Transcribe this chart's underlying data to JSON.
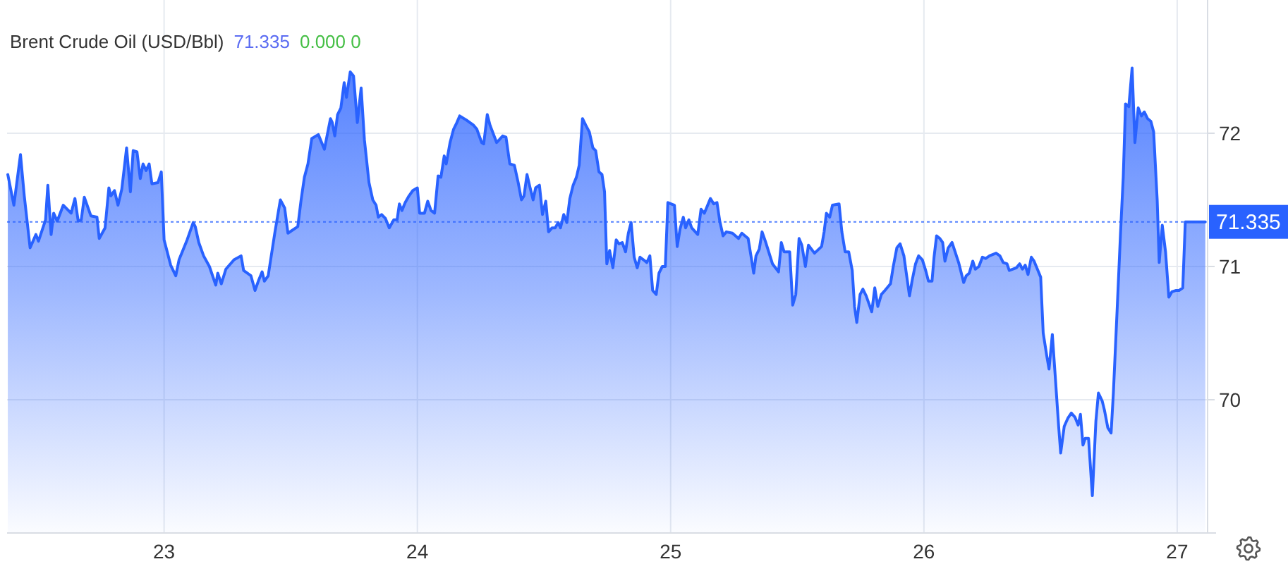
{
  "chart_data": {
    "type": "area",
    "title": "Brent Crude Oil (USD/Bbl)",
    "annotations": [
      "71.335",
      "0.000 0"
    ],
    "x": [
      22.383,
      22.407,
      22.433,
      22.448,
      22.471,
      22.494,
      22.504,
      22.532,
      22.541,
      22.554,
      22.564,
      22.578,
      22.602,
      22.633,
      22.648,
      22.661,
      22.673,
      22.685,
      22.711,
      22.735,
      22.744,
      22.767,
      22.782,
      22.79,
      22.804,
      22.818,
      22.833,
      22.852,
      22.867,
      22.878,
      22.893,
      22.906,
      22.917,
      22.929,
      22.941,
      22.952,
      22.976,
      22.989,
      23.0,
      23.026,
      23.046,
      23.059,
      23.091,
      23.115,
      23.123,
      23.137,
      23.156,
      23.179,
      23.204,
      23.212,
      23.226,
      23.244,
      23.276,
      23.304,
      23.314,
      23.343,
      23.359,
      23.374,
      23.387,
      23.396,
      23.411,
      23.437,
      23.459,
      23.476,
      23.489,
      23.528,
      23.541,
      23.554,
      23.568,
      23.583,
      23.609,
      23.633,
      23.657,
      23.664,
      23.674,
      23.685,
      23.698,
      23.711,
      23.72,
      23.735,
      23.748,
      23.763,
      23.778,
      23.791,
      23.809,
      23.824,
      23.837,
      23.846,
      23.859,
      23.874,
      23.889,
      23.907,
      23.92,
      23.929,
      23.939,
      23.952,
      23.967,
      23.982,
      24.0,
      24.009,
      24.028,
      24.041,
      24.054,
      24.068,
      24.082,
      24.093,
      24.106,
      24.114,
      24.129,
      24.143,
      24.156,
      24.167,
      24.193,
      24.222,
      24.235,
      24.254,
      24.262,
      24.276,
      24.287,
      24.313,
      24.323,
      24.337,
      24.35,
      24.365,
      24.383,
      24.398,
      24.411,
      24.421,
      24.433,
      24.444,
      24.457,
      24.467,
      24.482,
      24.494,
      24.507,
      24.518,
      24.532,
      24.544,
      24.556,
      24.565,
      24.578,
      24.59,
      24.602,
      24.615,
      24.628,
      24.639,
      24.652,
      24.665,
      24.679,
      24.693,
      24.704,
      24.717,
      24.729,
      24.739,
      24.748,
      24.759,
      24.772,
      24.785,
      24.796,
      24.809,
      24.822,
      24.833,
      24.844,
      24.856,
      24.868,
      24.879,
      24.893,
      24.906,
      24.918,
      24.929,
      24.943,
      24.954,
      24.967,
      24.979,
      24.989,
      25.015,
      25.026,
      25.037,
      25.05,
      25.059,
      25.072,
      25.083,
      25.107,
      25.12,
      25.133,
      25.157,
      25.17,
      25.183,
      25.194,
      25.207,
      25.22,
      25.244,
      25.268,
      25.281,
      25.306,
      25.318,
      25.328,
      25.337,
      25.35,
      25.361,
      25.374,
      25.402,
      25.426,
      25.437,
      25.448,
      25.47,
      25.482,
      25.494,
      25.507,
      25.518,
      25.532,
      25.544,
      25.568,
      25.596,
      25.606,
      25.615,
      25.628,
      25.639,
      25.665,
      25.676,
      25.689,
      25.703,
      25.717,
      25.726,
      25.735,
      25.748,
      25.759,
      25.772,
      25.785,
      25.794,
      25.806,
      25.818,
      25.832,
      25.846,
      25.868,
      25.879,
      25.893,
      25.906,
      25.921,
      25.929,
      25.943,
      25.954,
      25.967,
      25.979,
      25.994,
      26.007,
      26.018,
      26.032,
      26.04,
      26.05,
      26.063,
      26.074,
      26.083,
      26.096,
      26.111,
      26.137,
      26.157,
      26.167,
      26.179,
      26.193,
      26.203,
      26.217,
      26.231,
      26.244,
      26.259,
      26.285,
      26.3,
      26.313,
      26.328,
      26.337,
      26.365,
      26.378,
      26.389,
      26.4,
      26.411,
      26.424,
      26.435,
      26.448,
      26.461,
      26.471,
      26.485,
      26.494,
      26.507,
      26.518,
      26.532,
      26.54,
      26.554,
      26.568,
      26.582,
      26.596,
      26.609,
      26.618,
      26.628,
      26.637,
      26.65,
      26.665,
      26.679,
      26.689,
      26.704,
      26.713,
      26.726,
      26.739,
      26.748,
      26.763,
      26.776,
      26.787,
      26.796,
      26.809,
      26.822,
      26.833,
      26.846,
      26.859,
      26.87,
      26.883,
      26.896,
      26.907,
      26.921,
      26.929,
      26.941,
      26.954,
      26.967,
      26.979,
      26.994,
      27.007,
      27.022,
      27.032,
      27.111
    ],
    "series": [
      {
        "color": "#2962ff",
        "values": [
          71.69,
          71.46,
          71.84,
          71.53,
          71.14,
          71.24,
          71.19,
          71.35,
          71.61,
          71.24,
          71.4,
          71.34,
          71.46,
          71.4,
          71.51,
          71.34,
          71.35,
          71.52,
          71.38,
          71.37,
          71.21,
          71.29,
          71.59,
          71.53,
          71.57,
          71.46,
          71.58,
          71.89,
          71.56,
          71.87,
          71.86,
          71.66,
          71.77,
          71.72,
          71.77,
          71.62,
          71.63,
          71.71,
          71.2,
          71.01,
          70.93,
          71.05,
          71.2,
          71.33,
          71.3,
          71.18,
          71.08,
          71.0,
          70.86,
          70.95,
          70.87,
          70.98,
          71.05,
          71.08,
          70.97,
          70.93,
          70.82,
          70.9,
          70.96,
          70.89,
          70.93,
          71.25,
          71.5,
          71.44,
          71.25,
          71.3,
          71.5,
          71.67,
          71.77,
          71.96,
          71.99,
          71.88,
          72.11,
          72.08,
          71.98,
          72.14,
          72.19,
          72.38,
          72.27,
          72.46,
          72.43,
          72.08,
          72.34,
          71.95,
          71.63,
          71.5,
          71.46,
          71.37,
          71.39,
          71.36,
          71.29,
          71.35,
          71.35,
          71.47,
          71.42,
          71.48,
          71.53,
          71.57,
          71.59,
          71.4,
          71.4,
          71.49,
          71.42,
          71.4,
          71.68,
          71.67,
          71.83,
          71.77,
          71.93,
          72.03,
          72.08,
          72.13,
          72.1,
          72.06,
          72.03,
          71.93,
          71.92,
          72.14,
          72.06,
          71.93,
          71.95,
          71.98,
          71.97,
          71.77,
          71.76,
          71.63,
          71.5,
          71.53,
          71.69,
          71.6,
          71.5,
          71.59,
          71.61,
          71.39,
          71.49,
          71.26,
          71.29,
          71.29,
          71.33,
          71.29,
          71.39,
          71.33,
          71.51,
          71.61,
          71.67,
          71.76,
          72.11,
          72.06,
          72.01,
          71.89,
          71.87,
          71.71,
          71.69,
          71.56,
          71.02,
          71.12,
          70.99,
          71.2,
          71.17,
          71.18,
          71.11,
          71.25,
          71.33,
          71.07,
          70.99,
          71.07,
          71.05,
          71.03,
          71.08,
          70.82,
          70.79,
          70.95,
          71.0,
          71.0,
          71.48,
          71.46,
          71.15,
          71.28,
          71.37,
          71.29,
          71.35,
          71.29,
          71.24,
          71.43,
          71.4,
          71.51,
          71.47,
          71.48,
          71.34,
          71.23,
          71.26,
          71.25,
          71.21,
          71.25,
          71.21,
          71.07,
          70.95,
          71.08,
          71.13,
          71.26,
          71.19,
          71.02,
          70.96,
          71.18,
          71.11,
          71.11,
          70.71,
          70.79,
          71.21,
          71.16,
          71.0,
          71.16,
          71.1,
          71.15,
          71.26,
          71.4,
          71.37,
          71.46,
          71.47,
          71.26,
          71.11,
          71.11,
          70.97,
          70.7,
          70.58,
          70.79,
          70.83,
          70.78,
          70.71,
          70.66,
          70.84,
          70.7,
          70.79,
          70.82,
          70.87,
          71.0,
          71.14,
          71.17,
          71.08,
          70.97,
          70.78,
          70.9,
          71.02,
          71.08,
          71.05,
          70.97,
          70.89,
          70.89,
          71.07,
          71.23,
          71.21,
          71.18,
          71.04,
          71.14,
          71.18,
          71.03,
          70.88,
          70.93,
          70.95,
          71.04,
          70.98,
          71.0,
          71.07,
          71.06,
          71.08,
          71.1,
          71.08,
          71.03,
          71.02,
          70.97,
          70.99,
          71.02,
          70.98,
          71.01,
          70.94,
          71.07,
          71.04,
          70.98,
          70.92,
          70.5,
          70.33,
          70.23,
          70.49,
          70.19,
          69.8,
          69.6,
          69.8,
          69.86,
          69.9,
          69.87,
          69.81,
          69.89,
          69.66,
          69.71,
          69.71,
          69.28,
          69.84,
          70.05,
          69.99,
          69.92,
          69.79,
          69.75,
          70.05,
          70.68,
          71.24,
          71.67,
          72.22,
          72.2,
          72.49,
          71.93,
          72.19,
          72.13,
          72.16,
          72.11,
          72.09,
          72.01,
          71.5,
          71.03,
          71.31,
          71.11,
          70.77,
          70.81,
          70.82,
          70.82,
          70.84,
          71.335,
          71.335
        ]
      }
    ],
    "xlim": [
      22.38,
      27.12
    ],
    "ylim": [
      69,
      73
    ],
    "xticks": [
      23,
      24,
      25,
      26,
      27
    ],
    "yticks": [
      70,
      71,
      72
    ],
    "grid": true,
    "ref_lines": [
      {
        "axis": "y",
        "value": 71.335,
        "label": "71.335",
        "color": "#2962ff",
        "line_style": "dotted"
      }
    ]
  }
}
